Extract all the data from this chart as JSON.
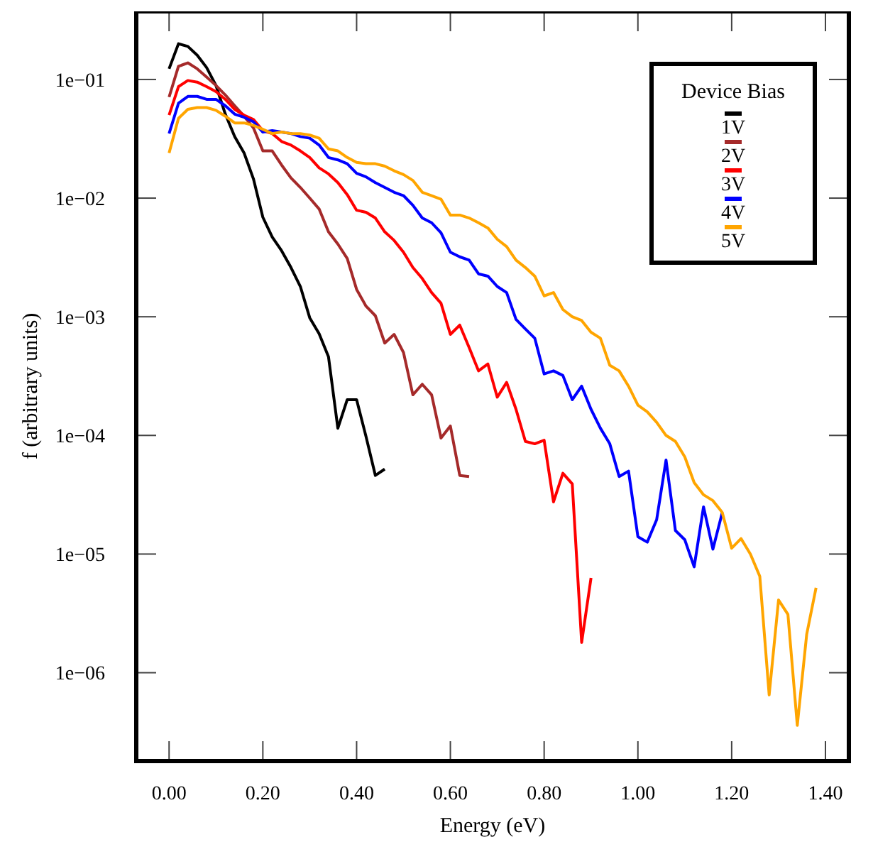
{
  "chart_data": {
    "type": "line",
    "xlabel": "Energy (eV)",
    "ylabel": "f (arbitrary units)",
    "legend_title": "Device Bias",
    "legend": "top right",
    "log": "y",
    "grid": false,
    "marker": "none",
    "line_style": "solid",
    "xlim": [
      -0.07,
      1.45
    ],
    "xticks": [
      {
        "value": 0,
        "label": "0.00"
      },
      {
        "value": 0.2,
        "label": "0.20"
      },
      {
        "value": 0.4,
        "label": "0.40"
      },
      {
        "value": 0.6,
        "label": "0.60"
      },
      {
        "value": 0.8,
        "label": "0.80"
      },
      {
        "value": 1.0,
        "label": "1.00"
      },
      {
        "value": 1.2,
        "label": "1.20"
      },
      {
        "value": 1.4,
        "label": "1.40"
      }
    ],
    "ylim": [
      1.8e-07,
      0.375
    ],
    "yticks": [
      {
        "value": 1e-06,
        "label": "1e−06"
      },
      {
        "value": 1e-05,
        "label": "1e−05"
      },
      {
        "value": 0.0001,
        "label": "1e−04"
      },
      {
        "value": 0.001,
        "label": "1e−03"
      },
      {
        "value": 0.01,
        "label": "1e−02"
      },
      {
        "value": 0.1,
        "label": "1e−01"
      }
    ],
    "series": [
      {
        "name": "1V",
        "color": "#000000",
        "x": [
          0,
          0.02,
          0.04,
          0.06,
          0.08,
          0.1,
          0.12,
          0.14,
          0.16,
          0.18,
          0.2,
          0.22,
          0.24,
          0.26,
          0.28,
          0.3,
          0.32,
          0.34,
          0.36,
          0.38,
          0.4,
          0.42,
          0.44,
          0.46
        ],
        "values": [
          0.123,
          0.2,
          0.19,
          0.16,
          0.126,
          0.089,
          0.051,
          0.033,
          0.024,
          0.0145,
          0.0069,
          0.0047,
          0.0036,
          0.0026,
          0.0018,
          0.00098,
          0.00072,
          0.00046,
          0.000115,
          0.0002,
          0.0002,
          9.8e-05,
          4.6e-05,
          5.2e-05
        ]
      },
      {
        "name": "2V",
        "color": "#a52a2a",
        "x": [
          0,
          0.02,
          0.04,
          0.06,
          0.08,
          0.1,
          0.12,
          0.14,
          0.16,
          0.18,
          0.2,
          0.22,
          0.24,
          0.26,
          0.28,
          0.3,
          0.32,
          0.34,
          0.36,
          0.38,
          0.4,
          0.42,
          0.44,
          0.46,
          0.48,
          0.5,
          0.52,
          0.54,
          0.56,
          0.58,
          0.6,
          0.62,
          0.64
        ],
        "values": [
          0.071,
          0.129,
          0.138,
          0.123,
          0.105,
          0.089,
          0.074,
          0.06,
          0.049,
          0.039,
          0.025,
          0.025,
          0.019,
          0.0148,
          0.0123,
          0.01,
          0.0081,
          0.0052,
          0.0041,
          0.0031,
          0.0017,
          0.00123,
          0.00102,
          0.0006,
          0.00071,
          0.0005,
          0.00022,
          0.00027,
          0.00022,
          9.5e-05,
          0.00012,
          4.6e-05,
          4.5e-05
        ]
      },
      {
        "name": "3V",
        "color": "#ff0000",
        "x": [
          0,
          0.02,
          0.04,
          0.06,
          0.08,
          0.1,
          0.12,
          0.14,
          0.16,
          0.18,
          0.2,
          0.22,
          0.24,
          0.26,
          0.28,
          0.3,
          0.32,
          0.34,
          0.36,
          0.38,
          0.4,
          0.42,
          0.44,
          0.46,
          0.48,
          0.5,
          0.52,
          0.54,
          0.56,
          0.58,
          0.6,
          0.62,
          0.64,
          0.66,
          0.68,
          0.7,
          0.72,
          0.74,
          0.76,
          0.78,
          0.8,
          0.82,
          0.84,
          0.86,
          0.88,
          0.9
        ],
        "values": [
          0.05,
          0.087,
          0.098,
          0.095,
          0.087,
          0.079,
          0.068,
          0.056,
          0.05,
          0.046,
          0.037,
          0.035,
          0.03,
          0.028,
          0.025,
          0.022,
          0.018,
          0.016,
          0.0135,
          0.0107,
          0.0079,
          0.0076,
          0.0068,
          0.0052,
          0.0044,
          0.0035,
          0.0026,
          0.0021,
          0.0016,
          0.0013,
          0.00071,
          0.00085,
          0.00055,
          0.00035,
          0.0004,
          0.00021,
          0.00028,
          0.000166,
          8.9e-05,
          8.5e-05,
          9.1e-05,
          2.75e-05,
          4.8e-05,
          3.9e-05,
          1.8e-06,
          6.3e-06
        ]
      },
      {
        "name": "4V",
        "color": "#0000ff",
        "x": [
          0,
          0.02,
          0.04,
          0.06,
          0.08,
          0.1,
          0.12,
          0.14,
          0.16,
          0.18,
          0.2,
          0.22,
          0.24,
          0.26,
          0.28,
          0.3,
          0.32,
          0.34,
          0.36,
          0.38,
          0.4,
          0.42,
          0.44,
          0.46,
          0.48,
          0.5,
          0.52,
          0.54,
          0.56,
          0.58,
          0.6,
          0.62,
          0.64,
          0.66,
          0.68,
          0.7,
          0.72,
          0.74,
          0.76,
          0.78,
          0.8,
          0.82,
          0.84,
          0.86,
          0.88,
          0.9,
          0.92,
          0.94,
          0.96,
          0.98,
          1.0,
          1.02,
          1.04,
          1.06,
          1.08,
          1.1,
          1.12,
          1.14,
          1.16,
          1.18
        ],
        "values": [
          0.035,
          0.063,
          0.072,
          0.072,
          0.068,
          0.068,
          0.06,
          0.051,
          0.048,
          0.044,
          0.036,
          0.037,
          0.036,
          0.035,
          0.033,
          0.032,
          0.028,
          0.022,
          0.021,
          0.0195,
          0.0162,
          0.0151,
          0.0135,
          0.0123,
          0.0112,
          0.0105,
          0.0087,
          0.0068,
          0.0062,
          0.0051,
          0.0035,
          0.0032,
          0.003,
          0.0023,
          0.0022,
          0.0018,
          0.0016,
          0.00095,
          0.00079,
          0.00066,
          0.00033,
          0.00035,
          0.00032,
          0.0002,
          0.00026,
          0.000166,
          0.000115,
          8.5e-05,
          4.5e-05,
          5e-05,
          1.4e-05,
          1.26e-05,
          1.95e-05,
          6.2e-05,
          1.58e-05,
          1.32e-05,
          7.8e-06,
          2.5e-05,
          1.1e-05,
          2.24e-05
        ]
      },
      {
        "name": "5V",
        "color": "#ffa500",
        "x": [
          0,
          0.02,
          0.04,
          0.06,
          0.08,
          0.1,
          0.12,
          0.14,
          0.16,
          0.18,
          0.2,
          0.22,
          0.24,
          0.26,
          0.28,
          0.3,
          0.32,
          0.34,
          0.36,
          0.38,
          0.4,
          0.42,
          0.44,
          0.46,
          0.48,
          0.5,
          0.52,
          0.54,
          0.56,
          0.58,
          0.6,
          0.62,
          0.64,
          0.66,
          0.68,
          0.7,
          0.72,
          0.74,
          0.76,
          0.78,
          0.8,
          0.82,
          0.84,
          0.86,
          0.88,
          0.9,
          0.92,
          0.94,
          0.96,
          0.98,
          1.0,
          1.02,
          1.04,
          1.06,
          1.08,
          1.1,
          1.12,
          1.14,
          1.16,
          1.18,
          1.2,
          1.22,
          1.24,
          1.26,
          1.28,
          1.3,
          1.32,
          1.34,
          1.36,
          1.38
        ],
        "values": [
          0.024,
          0.047,
          0.056,
          0.058,
          0.058,
          0.055,
          0.049,
          0.043,
          0.043,
          0.041,
          0.038,
          0.035,
          0.036,
          0.035,
          0.035,
          0.034,
          0.032,
          0.026,
          0.025,
          0.022,
          0.02,
          0.0195,
          0.0195,
          0.0186,
          0.017,
          0.0158,
          0.0141,
          0.0112,
          0.0105,
          0.0098,
          0.0072,
          0.0072,
          0.0068,
          0.0062,
          0.0056,
          0.0045,
          0.0039,
          0.003,
          0.0026,
          0.0022,
          0.0015,
          0.0016,
          0.00115,
          0.001,
          0.00093,
          0.00074,
          0.00066,
          0.00039,
          0.00035,
          0.00026,
          0.00018,
          0.000158,
          0.000129,
          0.0001,
          8.9e-05,
          6.6e-05,
          4e-05,
          3.16e-05,
          2.82e-05,
          2.24e-05,
          1.12e-05,
          1.35e-05,
          1e-05,
          6.5e-06,
          6.5e-07,
          4.1e-06,
          3.1e-06,
          3.6e-07,
          2.1e-06,
          5.2e-06
        ]
      }
    ]
  }
}
